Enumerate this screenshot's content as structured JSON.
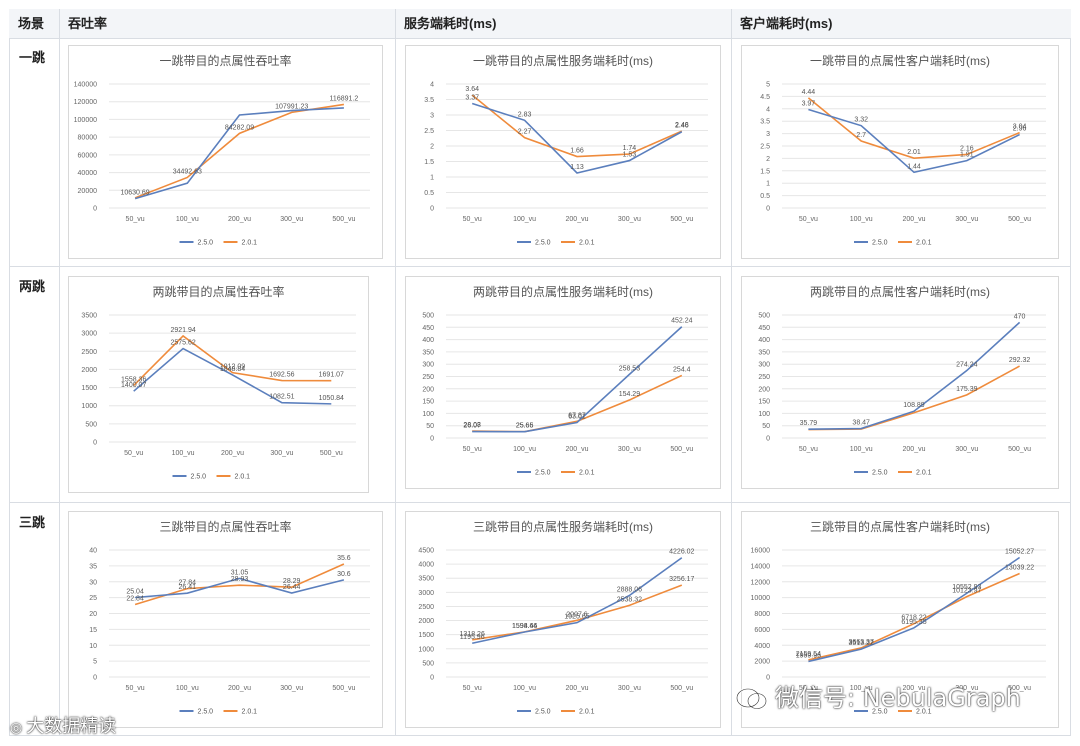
{
  "table": {
    "headers": [
      "场景",
      "吞吐率",
      "服务端耗时(ms)",
      "客户端耗时(ms)"
    ],
    "rows": [
      "一跳",
      "两跳",
      "三跳"
    ]
  },
  "colors": {
    "v250": "#5b7fbd",
    "v201": "#ef8b3c",
    "grid": "#e6e6e6"
  },
  "watermark": {
    "left": "大数据精读",
    "right": "微信号: NebulaGraph"
  },
  "chart_data": [
    {
      "type": "line",
      "title": "一跳带目的点属性吞吐率",
      "categories": [
        "50_vu",
        "100_vu",
        "200_vu",
        "300_vu",
        "500_vu"
      ],
      "ylim": [
        0,
        140000
      ],
      "yticks": [
        0,
        20000,
        40000,
        60000,
        80000,
        100000,
        120000,
        140000
      ],
      "series": [
        {
          "name": "2.5.0",
          "values": [
            10630.69,
            28000,
            105000,
            110000,
            113000
          ]
        },
        {
          "name": "2.0.1",
          "values": [
            11500,
            34492.63,
            84282.09,
            107991.23,
            116891.2
          ]
        }
      ],
      "labels": [
        {
          "text": "10630.69",
          "x": 0,
          "y": 10630.69
        },
        {
          "text": "34492.63",
          "x": 1,
          "y": 34492.63
        },
        {
          "text": "84282.09",
          "x": 2,
          "y": 84282.09
        },
        {
          "text": "107991.23",
          "x": 3,
          "y": 107991.23
        },
        {
          "text": "116891.2",
          "x": 4,
          "y": 116891.2
        }
      ]
    },
    {
      "type": "line",
      "title": "一跳带目的点属性服务端耗时(ms)",
      "categories": [
        "50_vu",
        "100_vu",
        "200_vu",
        "300_vu",
        "500_vu"
      ],
      "ylim": [
        0,
        4
      ],
      "yticks": [
        0,
        0.5,
        1,
        1.5,
        2,
        2.5,
        3,
        3.5,
        4
      ],
      "series": [
        {
          "name": "2.5.0",
          "values": [
            3.37,
            2.83,
            1.13,
            1.53,
            2.46
          ]
        },
        {
          "name": "2.0.1",
          "values": [
            3.64,
            2.27,
            1.66,
            1.74,
            2.48
          ]
        }
      ],
      "labels": [
        {
          "text": "3.64",
          "x": 0,
          "y": 3.64
        },
        {
          "text": "3.37",
          "x": 0,
          "y": 3.37
        },
        {
          "text": "2.83",
          "x": 1,
          "y": 2.83
        },
        {
          "text": "2.27",
          "x": 1,
          "y": 2.27
        },
        {
          "text": "1.66",
          "x": 2,
          "y": 1.66
        },
        {
          "text": "1.13",
          "x": 2,
          "y": 1.13
        },
        {
          "text": "1.74",
          "x": 3,
          "y": 1.74
        },
        {
          "text": "1.53",
          "x": 3,
          "y": 1.53
        },
        {
          "text": "2.48",
          "x": 4,
          "y": 2.48
        },
        {
          "text": "2.46",
          "x": 4,
          "y": 2.46
        }
      ]
    },
    {
      "type": "line",
      "title": "一跳带目的点属性客户端耗时(ms)",
      "categories": [
        "50_vu",
        "100_vu",
        "200_vu",
        "300_vu",
        "500_vu"
      ],
      "ylim": [
        0,
        5
      ],
      "yticks": [
        0,
        0.5,
        1,
        1.5,
        2,
        2.5,
        3,
        3.5,
        4,
        4.5,
        5
      ],
      "series": [
        {
          "name": "2.5.0",
          "values": [
            3.97,
            3.32,
            1.44,
            1.91,
            2.96
          ]
        },
        {
          "name": "2.0.1",
          "values": [
            4.44,
            2.7,
            2.01,
            2.16,
            3.04
          ]
        }
      ],
      "labels": [
        {
          "text": "4.44",
          "x": 0,
          "y": 4.44
        },
        {
          "text": "3.97",
          "x": 0,
          "y": 3.97
        },
        {
          "text": "3.32",
          "x": 1,
          "y": 3.32
        },
        {
          "text": "2.7",
          "x": 1,
          "y": 2.7
        },
        {
          "text": "2.01",
          "x": 2,
          "y": 2.01
        },
        {
          "text": "1.44",
          "x": 2,
          "y": 1.44
        },
        {
          "text": "2.16",
          "x": 3,
          "y": 2.16
        },
        {
          "text": "1.91",
          "x": 3,
          "y": 1.91
        },
        {
          "text": "3.04",
          "x": 4,
          "y": 3.04
        },
        {
          "text": "2.96",
          "x": 4,
          "y": 2.96
        }
      ]
    },
    {
      "type": "line",
      "title": "两跳带目的点属性吞吐率",
      "categories": [
        "50_vu",
        "100_vu",
        "200_vu",
        "300_vu",
        "500_vu"
      ],
      "ylim": [
        0,
        3500
      ],
      "yticks": [
        0,
        500,
        1000,
        1500,
        2000,
        2500,
        3000,
        3500
      ],
      "series": [
        {
          "name": "2.5.0",
          "values": [
            1400.07,
            2575.62,
            1848.84,
            1082.51,
            1050.84
          ]
        },
        {
          "name": "2.0.1",
          "values": [
            1558.36,
            2921.94,
            1912.09,
            1692.56,
            1691.07
          ]
        }
      ],
      "labels": [
        {
          "text": "1558.36",
          "x": 0,
          "y": 1558.36
        },
        {
          "text": "1400.07",
          "x": 0,
          "y": 1400.07
        },
        {
          "text": "2921.94",
          "x": 1,
          "y": 2921.94
        },
        {
          "text": "2575.62",
          "x": 1,
          "y": 2575.62
        },
        {
          "text": "1912.09",
          "x": 2,
          "y": 1912.09
        },
        {
          "text": "1848.84",
          "x": 2,
          "y": 1848.84
        },
        {
          "text": "1692.56",
          "x": 3,
          "y": 1692.56
        },
        {
          "text": "1082.51",
          "x": 3,
          "y": 1082.51
        },
        {
          "text": "1691.07",
          "x": 4,
          "y": 1691.07
        },
        {
          "text": "1050.84",
          "x": 4,
          "y": 1050.84
        }
      ]
    },
    {
      "type": "line",
      "title": "两跳带目的点属性服务端耗时(ms)",
      "categories": [
        "50_vu",
        "100_vu",
        "200_vu",
        "300_vu",
        "500_vu"
      ],
      "ylim": [
        0,
        500
      ],
      "yticks": [
        0,
        50,
        100,
        150,
        200,
        250,
        300,
        350,
        400,
        450,
        500
      ],
      "series": [
        {
          "name": "2.5.0",
          "values": [
            26.07,
            25.65,
            63.01,
            258.53,
            452.24
          ]
        },
        {
          "name": "2.0.1",
          "values": [
            28.08,
            25.66,
            67.87,
            154.29,
            254.4
          ]
        }
      ],
      "labels": [
        {
          "text": "28.08",
          "x": 0,
          "y": 28.08
        },
        {
          "text": "26.07",
          "x": 0,
          "y": 26.07
        },
        {
          "text": "25.66",
          "x": 1,
          "y": 25.66
        },
        {
          "text": "25.65",
          "x": 1,
          "y": 25.65
        },
        {
          "text": "67.87",
          "x": 2,
          "y": 67.87
        },
        {
          "text": "63.01",
          "x": 2,
          "y": 63.01
        },
        {
          "text": "258.53",
          "x": 3,
          "y": 258.53
        },
        {
          "text": "154.29",
          "x": 3,
          "y": 154.29
        },
        {
          "text": "452.24",
          "x": 4,
          "y": 452.24
        },
        {
          "text": "254.4",
          "x": 4,
          "y": 254.4
        }
      ]
    },
    {
      "type": "line",
      "title": "两跳带目的点属性客户端耗时(ms)",
      "categories": [
        "50_vu",
        "100_vu",
        "200_vu",
        "300_vu",
        "500_vu"
      ],
      "ylim": [
        0,
        500
      ],
      "yticks": [
        0,
        50,
        100,
        150,
        200,
        250,
        300,
        350,
        400,
        450,
        500
      ],
      "series": [
        {
          "name": "2.5.0",
          "values": [
            35.79,
            38.47,
            108.89,
            274.24,
            470
          ]
        },
        {
          "name": "2.0.1",
          "values": [
            34,
            36.16,
            102.66,
            175.39,
            292.32
          ]
        }
      ],
      "labels": [
        {
          "text": "35.79",
          "x": 0,
          "y": 35.79
        },
        {
          "text": "38.47",
          "x": 1,
          "y": 38.47
        },
        {
          "text": "108.89",
          "x": 2,
          "y": 108.89
        },
        {
          "text": "274.24",
          "x": 3,
          "y": 274.24
        },
        {
          "text": "175.39",
          "x": 3,
          "y": 175.39
        },
        {
          "text": "470",
          "x": 4,
          "y": 470
        },
        {
          "text": "292.32",
          "x": 4,
          "y": 292.32
        }
      ]
    },
    {
      "type": "line",
      "title": "三跳带目的点属性吞吐率",
      "categories": [
        "50_vu",
        "100_vu",
        "200_vu",
        "300_vu",
        "500_vu"
      ],
      "ylim": [
        0,
        40
      ],
      "yticks": [
        0,
        5,
        10,
        15,
        20,
        25,
        30,
        35,
        40
      ],
      "series": [
        {
          "name": "2.5.0",
          "values": [
            25.04,
            26.41,
            31.05,
            26.44,
            30.6
          ]
        },
        {
          "name": "2.0.1",
          "values": [
            22.84,
            27.84,
            28.93,
            28.29,
            35.6
          ]
        }
      ],
      "labels": [
        {
          "text": "25.04",
          "x": 0,
          "y": 25.04
        },
        {
          "text": "22.84",
          "x": 0,
          "y": 22.84
        },
        {
          "text": "27.84",
          "x": 1,
          "y": 27.84
        },
        {
          "text": "26.41",
          "x": 1,
          "y": 26.41
        },
        {
          "text": "31.05",
          "x": 2,
          "y": 31.05
        },
        {
          "text": "28.93",
          "x": 2,
          "y": 28.93
        },
        {
          "text": "28.29",
          "x": 3,
          "y": 28.29
        },
        {
          "text": "26.44",
          "x": 3,
          "y": 26.44
        },
        {
          "text": "35.6",
          "x": 4,
          "y": 35.6
        },
        {
          "text": "30.6",
          "x": 4,
          "y": 30.6
        }
      ]
    },
    {
      "type": "line",
      "title": "三跳带目的点属性服务端耗时(ms)",
      "categories": [
        "50_vu",
        "100_vu",
        "200_vu",
        "300_vu",
        "500_vu"
      ],
      "ylim": [
        0,
        4500
      ],
      "yticks": [
        0,
        500,
        1000,
        1500,
        2000,
        2500,
        3000,
        3500,
        4000,
        4500
      ],
      "series": [
        {
          "name": "2.5.0",
          "values": [
            1195.96,
            1594.44,
            1925.65,
            2888.06,
            4226.02
          ]
        },
        {
          "name": "2.0.1",
          "values": [
            1318.26,
            1598.66,
            2007.6,
            2538.32,
            3256.17
          ]
        }
      ],
      "labels": [
        {
          "text": "1318.26",
          "x": 0,
          "y": 1318.26
        },
        {
          "text": "1195.96",
          "x": 0,
          "y": 1195.96
        },
        {
          "text": "1598.66",
          "x": 1,
          "y": 1598.66
        },
        {
          "text": "1594.44",
          "x": 1,
          "y": 1594.44
        },
        {
          "text": "2007.6",
          "x": 2,
          "y": 2007.6
        },
        {
          "text": "1925.65",
          "x": 2,
          "y": 1925.65
        },
        {
          "text": "2888.06",
          "x": 3,
          "y": 2888.06
        },
        {
          "text": "2538.32",
          "x": 3,
          "y": 2538.32
        },
        {
          "text": "4226.02",
          "x": 4,
          "y": 4226.02
        },
        {
          "text": "3256.17",
          "x": 4,
          "y": 3256.17
        }
      ]
    },
    {
      "type": "line",
      "title": "三跳带目的点属性客户端耗时(ms)",
      "categories": [
        "50_vu",
        "100_vu",
        "200_vu",
        "300_vu",
        "500_vu"
      ],
      "ylim": [
        0,
        16000
      ],
      "yticks": [
        0,
        2000,
        4000,
        6000,
        8000,
        10000,
        12000,
        14000,
        16000
      ],
      "series": [
        {
          "name": "2.5.0",
          "values": [
            1959.96,
            3513.22,
            6195.35,
            10552.93,
            15052.27
          ]
        },
        {
          "name": "2.0.1",
          "values": [
            2159.54,
            3663.37,
            6718.22,
            10123.97,
            13039.22
          ]
        }
      ],
      "labels": [
        {
          "text": "2159.54",
          "x": 0,
          "y": 2159.54
        },
        {
          "text": "1959.96",
          "x": 0,
          "y": 1959.96
        },
        {
          "text": "3663.37",
          "x": 1,
          "y": 3663.37
        },
        {
          "text": "3513.22",
          "x": 1,
          "y": 3513.22
        },
        {
          "text": "6718.22",
          "x": 2,
          "y": 6718.22
        },
        {
          "text": "6195.35",
          "x": 2,
          "y": 6195.35
        },
        {
          "text": "10552.93",
          "x": 3,
          "y": 10552.93
        },
        {
          "text": "10123.97",
          "x": 3,
          "y": 10123.97
        },
        {
          "text": "15052.27",
          "x": 4,
          "y": 15052.27
        },
        {
          "text": "13039.22",
          "x": 4,
          "y": 13039.22
        }
      ]
    }
  ]
}
